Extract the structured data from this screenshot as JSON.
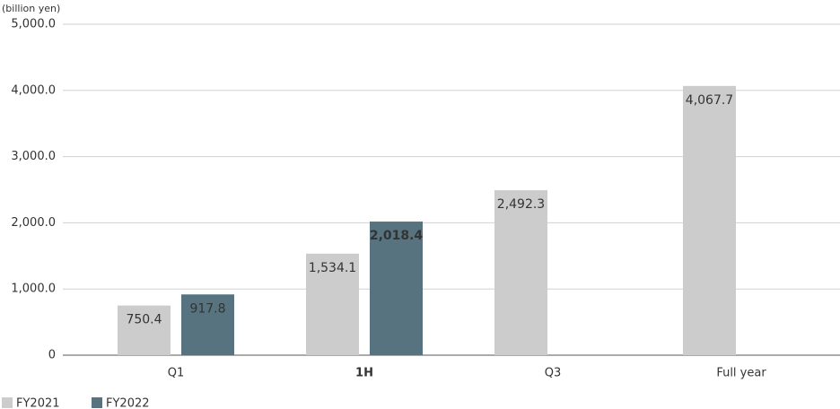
{
  "chart_data": {
    "type": "bar",
    "y_axis_label": "(billion yen)",
    "categories": [
      "Q1",
      "1H",
      "Q3",
      "Full year"
    ],
    "series": [
      {
        "name": "FY2021",
        "color": "#cccccc",
        "values": [
          750.4,
          1534.1,
          2492.3,
          4067.7
        ],
        "value_labels": [
          "750.4",
          "1,534.1",
          "2,492.3",
          "4,067.7"
        ]
      },
      {
        "name": "FY2022",
        "color": "#56737f",
        "values": [
          917.8,
          2018.4,
          null,
          null
        ],
        "value_labels": [
          "917.8",
          "2,018.4",
          null,
          null
        ]
      }
    ],
    "ylim": [
      0,
      5000
    ],
    "yticks": [
      0,
      {
        "value": 1000,
        "label": "1,000.0"
      },
      {
        "value": 2000,
        "label": "2,000.0"
      },
      {
        "value": 3000,
        "label": "3,000.0"
      },
      {
        "value": 4000,
        "label": "4,000.0"
      },
      {
        "value": 5000,
        "label": "5,000.0"
      }
    ],
    "grid": true
  }
}
